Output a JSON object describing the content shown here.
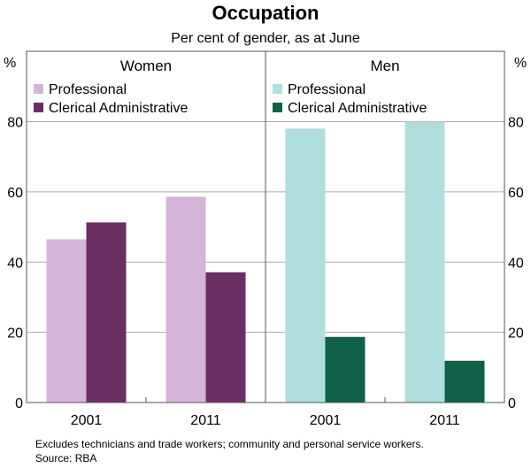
{
  "chart_data": {
    "type": "bar",
    "title": "Occupation",
    "subtitle": "Per cent of gender, as at June",
    "ylabel_left": "%",
    "ylabel_right": "%",
    "ylim": [
      0,
      80
    ],
    "yticks": [
      0,
      20,
      40,
      60,
      80
    ],
    "grid": true,
    "panels": [
      {
        "title": "Women",
        "categories": [
          "2001",
          "2011"
        ],
        "series": [
          {
            "name": "Professional",
            "color": "#d4b4d9",
            "values": [
              46.5,
              58.6
            ]
          },
          {
            "name": "Clerical Administrative",
            "color": "#6b2e63",
            "values": [
              51.3,
              37.1
            ]
          }
        ]
      },
      {
        "title": "Men",
        "categories": [
          "2001",
          "2011"
        ],
        "series": [
          {
            "name": "Professional",
            "color": "#b0dedd",
            "values": [
              78,
              80
            ]
          },
          {
            "name": "Clerical Administrative",
            "color": "#10604a",
            "values": [
              18.7,
              11.9
            ]
          }
        ]
      }
    ],
    "notes": "Excludes technicians and trade workers; community and personal service workers.",
    "source": "Source: RBA"
  }
}
